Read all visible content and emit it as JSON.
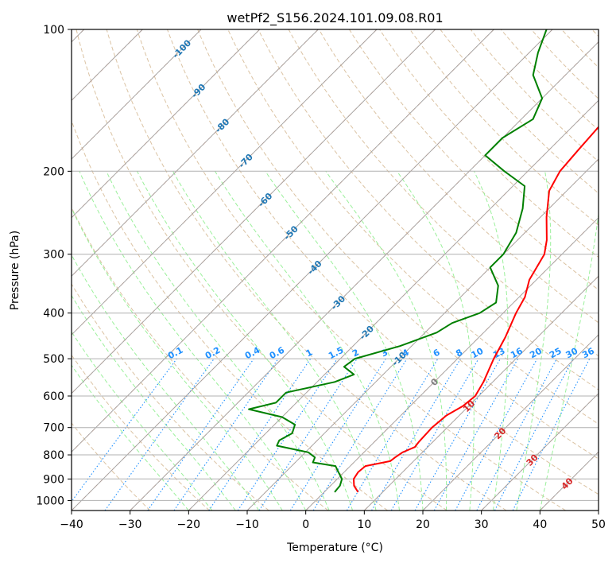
{
  "chart_data": {
    "type": "line",
    "title": "wetPf2_S156.2024.101.09.08.R01",
    "xlabel": "Temperature (°C)",
    "ylabel": "Pressure (hPa)",
    "xlim": [
      -40,
      50
    ],
    "ylim": [
      1050,
      100
    ],
    "y_scale": "log",
    "x_ticks": [
      -40,
      -30,
      -20,
      -10,
      0,
      10,
      20,
      30,
      40,
      50
    ],
    "x_tick_labels": [
      "−40",
      "−30",
      "−20",
      "−10",
      "0",
      "10",
      "20",
      "30",
      "40",
      "50"
    ],
    "y_ticks": [
      100,
      200,
      300,
      400,
      500,
      600,
      700,
      800,
      900,
      1000
    ],
    "y_tick_labels": [
      "100",
      "200",
      "300",
      "400",
      "500",
      "600",
      "700",
      "800",
      "900",
      "1000"
    ],
    "grid": true,
    "series": [
      {
        "role": "temperature",
        "color": "#ff0000",
        "points": [
          {
            "p": 960,
            "t": 5.8
          },
          {
            "p": 930,
            "t": 4.0
          },
          {
            "p": 900,
            "t": 2.8
          },
          {
            "p": 870,
            "t": 2.4
          },
          {
            "p": 845,
            "t": 2.6
          },
          {
            "p": 825,
            "t": 6.0
          },
          {
            "p": 810,
            "t": 6.2
          },
          {
            "p": 790,
            "t": 6.6
          },
          {
            "p": 770,
            "t": 7.8
          },
          {
            "p": 750,
            "t": 7.6
          },
          {
            "p": 700,
            "t": 7.4
          },
          {
            "p": 660,
            "t": 7.8
          },
          {
            "p": 630,
            "t": 9.0
          },
          {
            "p": 600,
            "t": 9.4
          },
          {
            "p": 560,
            "t": 8.4
          },
          {
            "p": 500,
            "t": 6.2
          },
          {
            "p": 450,
            "t": 4.5
          },
          {
            "p": 400,
            "t": 2.2
          },
          {
            "p": 370,
            "t": 1.0
          },
          {
            "p": 340,
            "t": -1.2
          },
          {
            "p": 300,
            "t": -3.0
          },
          {
            "p": 280,
            "t": -5.0
          },
          {
            "p": 250,
            "t": -9.0
          },
          {
            "p": 220,
            "t": -13.0
          },
          {
            "p": 200,
            "t": -14.5
          },
          {
            "p": 180,
            "t": -15.0
          },
          {
            "p": 160,
            "t": -15.5
          },
          {
            "p": 140,
            "t": -17.0
          },
          {
            "p": 125,
            "t": -20.0
          },
          {
            "p": 115,
            "t": -21.5
          },
          {
            "p": 100,
            "t": -25.0
          }
        ]
      },
      {
        "role": "dewpoint",
        "color": "#008000",
        "points": [
          {
            "p": 960,
            "t": 1.8
          },
          {
            "p": 930,
            "t": 1.6
          },
          {
            "p": 900,
            "t": 0.8
          },
          {
            "p": 870,
            "t": -1.0
          },
          {
            "p": 845,
            "t": -2.5
          },
          {
            "p": 830,
            "t": -7.0
          },
          {
            "p": 810,
            "t": -7.5
          },
          {
            "p": 790,
            "t": -9.5
          },
          {
            "p": 765,
            "t": -16.0
          },
          {
            "p": 745,
            "t": -16.5
          },
          {
            "p": 720,
            "t": -15.5
          },
          {
            "p": 690,
            "t": -16.5
          },
          {
            "p": 665,
            "t": -20.0
          },
          {
            "p": 640,
            "t": -27.0
          },
          {
            "p": 620,
            "t": -23.5
          },
          {
            "p": 590,
            "t": -23.5
          },
          {
            "p": 560,
            "t": -17.0
          },
          {
            "p": 540,
            "t": -15.0
          },
          {
            "p": 520,
            "t": -18.0
          },
          {
            "p": 500,
            "t": -17.5
          },
          {
            "p": 470,
            "t": -12.0
          },
          {
            "p": 440,
            "t": -8.0
          },
          {
            "p": 420,
            "t": -7.0
          },
          {
            "p": 400,
            "t": -4.0
          },
          {
            "p": 380,
            "t": -3.0
          },
          {
            "p": 350,
            "t": -5.5
          },
          {
            "p": 320,
            "t": -10.0
          },
          {
            "p": 300,
            "t": -10.0
          },
          {
            "p": 270,
            "t": -11.5
          },
          {
            "p": 240,
            "t": -14.5
          },
          {
            "p": 215,
            "t": -18.0
          },
          {
            "p": 200,
            "t": -24.0
          },
          {
            "p": 185,
            "t": -30.0
          },
          {
            "p": 170,
            "t": -30.0
          },
          {
            "p": 155,
            "t": -28.0
          },
          {
            "p": 140,
            "t": -30.0
          },
          {
            "p": 125,
            "t": -35.5
          },
          {
            "p": 112,
            "t": -38.5
          },
          {
            "p": 100,
            "t": -41.0
          }
        ]
      }
    ],
    "isotherm_labels": [
      "-100",
      "-90",
      "-80",
      "-70",
      "-60",
      "-50",
      "-40",
      "-30",
      "-20",
      "-10",
      "0",
      "10",
      "20",
      "30",
      "40"
    ],
    "mixing_ratio_labels": [
      "0.1",
      "0.2",
      "0.4",
      "0.6",
      "1",
      "1.5",
      "2",
      "3",
      "4",
      "6",
      "8",
      "10",
      "13",
      "16",
      "20",
      "25",
      "30",
      "36"
    ],
    "mixing_ratio_values": [
      0.1,
      0.2,
      0.4,
      0.6,
      1,
      1.5,
      2,
      3,
      4,
      6,
      8,
      10,
      13,
      16,
      20,
      25,
      30,
      36
    ],
    "colors": {
      "temperature": "#ff0000",
      "dewpoint": "#008000",
      "isotherm_cold_label": "#1f77b4",
      "isotherm_warm_label": "#d62728",
      "isotherm_zero_label": "#7f7f7f",
      "mixing_ratio": "#1e90ff",
      "dry_adiabat": "#d2b48c",
      "moist_adiabat": "#90ee90",
      "isotherm_line": "#ffa07a",
      "skew_grid": "#a0a0a0"
    }
  }
}
